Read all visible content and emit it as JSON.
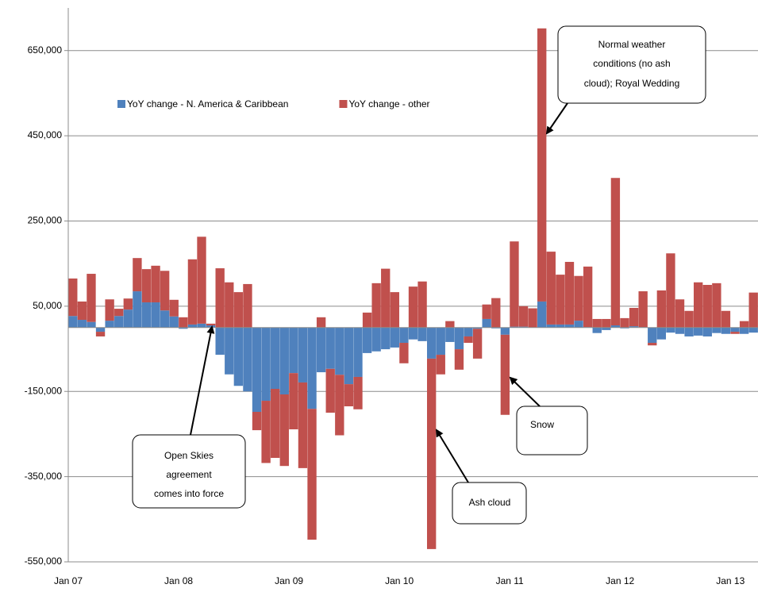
{
  "chart_data": {
    "type": "stacked-bar",
    "categories": [
      "Jan 07",
      null,
      null,
      null,
      null,
      null,
      null,
      null,
      null,
      null,
      null,
      null,
      "Jan 08",
      null,
      null,
      null,
      null,
      null,
      null,
      null,
      null,
      null,
      null,
      null,
      "Jan 09",
      null,
      null,
      null,
      null,
      null,
      null,
      null,
      null,
      null,
      null,
      null,
      "Jan 10",
      null,
      null,
      null,
      null,
      null,
      null,
      null,
      null,
      null,
      null,
      null,
      "Jan 11",
      null,
      null,
      null,
      null,
      null,
      null,
      null,
      null,
      null,
      null,
      null,
      "Jan 12",
      null,
      null,
      null,
      null,
      null,
      null,
      null,
      null,
      null,
      null,
      null,
      "Jan 13",
      null,
      null
    ],
    "series": [
      {
        "name": "YoY change - N. America & Caribbean",
        "color": "#4f81bd",
        "values": [
          27000,
          18000,
          13000,
          -10000,
          16000,
          27000,
          42000,
          85000,
          59000,
          59000,
          40000,
          26000,
          -3000,
          7000,
          9000,
          5000,
          -64000,
          -110000,
          -137000,
          -150000,
          -198000,
          -172000,
          -144000,
          -157000,
          -107000,
          -129000,
          -191000,
          -105000,
          -97000,
          -111000,
          -133000,
          -116000,
          -60000,
          -56000,
          -51000,
          -47000,
          -36000,
          -28000,
          -32000,
          -73000,
          -64000,
          -34000,
          -51000,
          -21000,
          -3000,
          20000,
          -2000,
          -17000,
          2000,
          2000,
          0,
          61000,
          7000,
          7000,
          7000,
          16000,
          1000,
          -13000,
          -6000,
          5000,
          -2000,
          3000,
          1000,
          -36000,
          -28000,
          -12000,
          -15000,
          -21000,
          -19000,
          -21000,
          -13000,
          -15000,
          -10000,
          -15000,
          -12000
        ]
      },
      {
        "name": "YoY change - other",
        "color": "#c0504d",
        "values": [
          88000,
          43000,
          113000,
          -11000,
          50000,
          17000,
          26000,
          78000,
          78000,
          86000,
          93000,
          39000,
          24000,
          153000,
          204000,
          4000,
          139000,
          106000,
          83000,
          102000,
          -43000,
          -146000,
          -162000,
          -168000,
          -132000,
          -201000,
          -307000,
          24000,
          -103000,
          -142000,
          -52000,
          -76000,
          35000,
          104000,
          138000,
          83000,
          -48000,
          96000,
          108000,
          -447000,
          -46000,
          15000,
          -48000,
          -15000,
          -70000,
          34000,
          69000,
          -188000,
          200000,
          48000,
          45000,
          641000,
          171000,
          117000,
          147000,
          105000,
          142000,
          20000,
          20000,
          346000,
          22000,
          43000,
          84000,
          -6000,
          87000,
          174000,
          66000,
          39000,
          106000,
          100000,
          104000,
          39000,
          -5000,
          15000,
          82000
        ]
      }
    ],
    "ylim": [
      -550000,
      750000
    ],
    "yticks": [
      {
        "value": -550000,
        "label": "-550,000"
      },
      {
        "value": -350000,
        "label": "-350,000"
      },
      {
        "value": -150000,
        "label": "-150,000"
      },
      {
        "value": 50000,
        "label": "50,000"
      },
      {
        "value": 250000,
        "label": "250,000"
      },
      {
        "value": 450000,
        "label": "450,000"
      },
      {
        "value": 650000,
        "label": "650,000"
      }
    ],
    "grid": true,
    "legend": "top",
    "annotations": [
      {
        "lines": [
          "Normal weather",
          "conditions (no ash",
          "cloud); Royal Wedding"
        ]
      },
      {
        "lines": [
          "Open Skies",
          "agreement",
          "comes into force"
        ]
      },
      {
        "lines": [
          "Snow"
        ]
      },
      {
        "lines": [
          "Ash cloud"
        ]
      }
    ]
  }
}
